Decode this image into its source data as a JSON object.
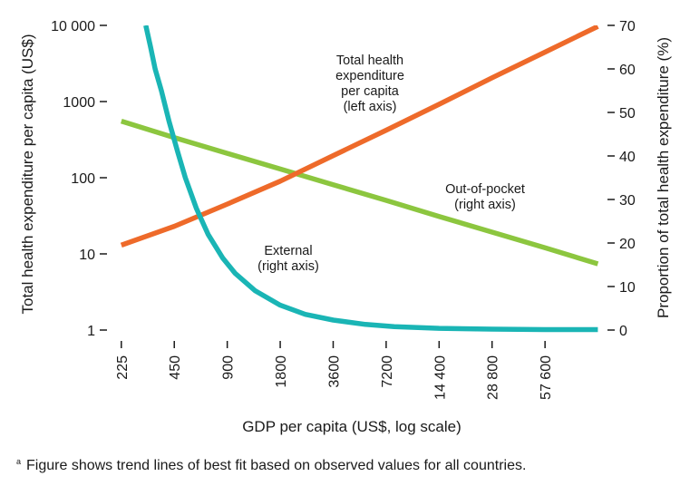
{
  "chart_data": {
    "type": "line",
    "title": "",
    "xlabel": "GDP per capita (US$, log scale)",
    "ylabel_left": "Total health expenditure per capita (US$)",
    "ylabel_right": "Proportion of total health expenditure (%)",
    "x_scale": "log",
    "x_ticks": [
      225,
      450,
      900,
      1800,
      3600,
      7200,
      14400,
      28800,
      57600
    ],
    "x_tick_labels": [
      "225",
      "450",
      "900",
      "1800",
      "3600",
      "7200",
      "14 400",
      "28 800",
      "57 600"
    ],
    "x_range": [
      210,
      120000
    ],
    "y_left_scale": "log",
    "y_left_range": [
      1,
      10000
    ],
    "y_left_ticks": [
      1,
      10,
      100,
      1000,
      10000
    ],
    "y_left_tick_labels": [
      "1",
      "10",
      "100",
      "1000",
      "10 000"
    ],
    "y_right_range": [
      0,
      70
    ],
    "y_right_ticks": [
      0,
      10,
      20,
      30,
      40,
      50,
      60,
      70
    ],
    "y_right_tick_labels": [
      "0",
      "10",
      "20",
      "30",
      "40",
      "50",
      "60",
      "70"
    ],
    "grid": false,
    "series": [
      {
        "name": "Total health expenditure per capita (left axis)",
        "axis": "left",
        "color": "#ee6a2a",
        "x": [
          225,
          450,
          900,
          1800,
          3600,
          7200,
          14400,
          28800,
          57600,
          115000
        ],
        "y": [
          13,
          23,
          45,
          90,
          195,
          420,
          920,
          2050,
          4450,
          9700
        ]
      },
      {
        "name": "Out-of-pocket (right axis)",
        "axis": "right",
        "color": "#8cc63f",
        "x": [
          225,
          450,
          900,
          1800,
          3600,
          7200,
          14400,
          28800,
          57600,
          115000
        ],
        "y": [
          48,
          44.2,
          40.6,
          37,
          33.4,
          29.8,
          26.1,
          22.5,
          18.9,
          15.2
        ]
      },
      {
        "name": "External (right axis)",
        "axis": "right",
        "color": "#1ab5b5",
        "x": [
          310,
          330,
          350,
          380,
          420,
          470,
          520,
          600,
          700,
          850,
          1000,
          1300,
          1800,
          2500,
          3600,
          5500,
          8000,
          14400,
          28800,
          57600,
          115000
        ],
        "y": [
          70,
          65,
          60,
          55,
          48,
          41,
          35,
          28,
          22,
          16.5,
          13,
          9,
          5.7,
          3.6,
          2.3,
          1.3,
          0.8,
          0.4,
          0.2,
          0.1,
          0.1
        ]
      }
    ],
    "annotations": [
      {
        "lines": [
          "Total health",
          "expenditure",
          "per capita",
          "(left axis)"
        ],
        "series": 0
      },
      {
        "lines": [
          "Out-of-pocket",
          "(right axis)"
        ],
        "series": 1
      },
      {
        "lines": [
          "External",
          "(right axis)"
        ],
        "series": 2
      }
    ]
  },
  "footnote": {
    "marker": "a",
    "text": "Figure shows trend lines of best fit based on observed values for all countries."
  }
}
